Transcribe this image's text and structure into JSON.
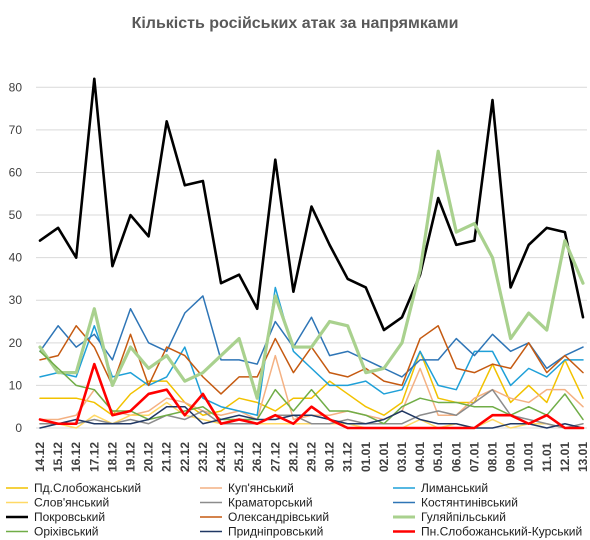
{
  "chart_data": {
    "type": "line",
    "title": "Кількість російських атак за напрямками",
    "xlabel": "",
    "ylabel": "",
    "ylim": [
      0,
      85
    ],
    "yticks": [
      0,
      10,
      20,
      30,
      40,
      50,
      60,
      70,
      80
    ],
    "grid": "horizontal",
    "legend_position": "bottom",
    "categories": [
      "14.12",
      "15.12",
      "16.12",
      "17.12",
      "18.12",
      "19.12",
      "20.12",
      "21.12",
      "22.12",
      "23.12",
      "24.12",
      "25.12",
      "26.12",
      "27.12",
      "28.12",
      "29.12",
      "30.12",
      "31.12",
      "01.01",
      "02.01",
      "03.01",
      "04.01",
      "05.01",
      "06.01",
      "07.01",
      "08.01",
      "09.01",
      "10.01",
      "11.01",
      "12.01",
      "13.01"
    ],
    "x": [
      "14.12",
      "15.12",
      "16.12",
      "17.12",
      "18.12",
      "19.12",
      "20.12",
      "21.12",
      "22.12",
      "23.12",
      "24.12",
      "25.12",
      "26.12",
      "27.12",
      "28.12",
      "29.12",
      "30.12",
      "31.12",
      "01.01",
      "02.01",
      "03.01",
      "04.01",
      "05.01",
      "06.01",
      "07.01",
      "08.01",
      "09.01",
      "10.01",
      "11.01",
      "12.01",
      "13.01"
    ],
    "series": [
      {
        "name": "Пд.Слобожанський",
        "color": "#f2c200",
        "width": 1.5,
        "values": [
          7,
          7,
          7,
          6,
          3,
          8,
          11,
          11,
          6,
          3,
          4,
          7,
          6,
          4,
          7,
          7,
          11,
          8,
          5,
          3,
          6,
          18,
          7,
          6,
          6,
          15,
          6,
          10,
          6,
          16,
          7
        ]
      },
      {
        "name": "Куп'янський",
        "color": "#f4b183",
        "width": 1.5,
        "values": [
          2,
          2,
          3,
          9,
          4,
          3,
          4,
          7,
          6,
          4,
          3,
          4,
          2,
          17,
          2,
          3,
          3,
          4,
          3,
          2,
          4,
          14,
          3,
          3,
          7,
          9,
          7,
          6,
          9,
          9,
          5
        ]
      },
      {
        "name": "Лиманський",
        "color": "#1fa0d8",
        "width": 1.5,
        "values": [
          12,
          13,
          12,
          24,
          12,
          13,
          10,
          12,
          19,
          7,
          5,
          4,
          3,
          33,
          18,
          14,
          10,
          10,
          11,
          8,
          9,
          18,
          10,
          9,
          18,
          18,
          10,
          14,
          12,
          16,
          16
        ]
      },
      {
        "name": "Слов'янський",
        "color": "#ffd966",
        "width": 1.5,
        "values": [
          1,
          1,
          0,
          3,
          1,
          3,
          3,
          6,
          3,
          2,
          1,
          1,
          1,
          1,
          1,
          1,
          1,
          1,
          0,
          0,
          0,
          2,
          0,
          1,
          0,
          2,
          0,
          1,
          1,
          0,
          0
        ]
      },
      {
        "name": "Краматорський",
        "color": "#8c8c8c",
        "width": 1.5,
        "values": [
          1,
          1,
          1,
          2,
          1,
          2,
          1,
          3,
          2,
          4,
          1,
          1,
          1,
          3,
          3,
          1,
          1,
          2,
          1,
          1,
          1,
          3,
          4,
          3,
          6,
          9,
          3,
          2,
          1,
          0,
          1
        ]
      },
      {
        "name": "Костянтинівський",
        "color": "#2e75b6",
        "width": 1.5,
        "values": [
          18,
          24,
          19,
          22,
          16,
          28,
          20,
          18,
          27,
          31,
          16,
          16,
          15,
          25,
          19,
          26,
          17,
          18,
          16,
          14,
          12,
          16,
          16,
          21,
          17,
          22,
          18,
          20,
          14,
          17,
          19
        ]
      },
      {
        "name": "Покровський",
        "color": "#000000",
        "width": 2.6,
        "values": [
          44,
          47,
          40,
          82,
          38,
          50,
          45,
          72,
          57,
          58,
          34,
          36,
          28,
          63,
          32,
          52,
          43,
          35,
          33,
          23,
          26,
          36,
          54,
          43,
          44,
          77,
          33,
          43,
          47,
          46,
          26
        ]
      },
      {
        "name": "Олександрівський",
        "color": "#c55a11",
        "width": 1.5,
        "values": [
          16,
          17,
          24,
          19,
          10,
          22,
          10,
          19,
          17,
          12,
          8,
          12,
          12,
          21,
          13,
          19,
          13,
          12,
          14,
          11,
          10,
          21,
          24,
          14,
          13,
          15,
          14,
          20,
          13,
          17,
          13
        ]
      },
      {
        "name": "Гуляйпільський",
        "color": "#a9d18e",
        "width": 3.2,
        "values": [
          19,
          13,
          13,
          28,
          10,
          19,
          14,
          17,
          11,
          13,
          17,
          21,
          7,
          31,
          19,
          19,
          25,
          24,
          13,
          14,
          20,
          37,
          65,
          46,
          48,
          40,
          21,
          27,
          23,
          44,
          34
        ]
      },
      {
        "name": "Оріхівський",
        "color": "#70ad47",
        "width": 1.5,
        "values": [
          18,
          14,
          10,
          9,
          4,
          4,
          2,
          3,
          4,
          5,
          2,
          2,
          2,
          9,
          4,
          9,
          4,
          4,
          3,
          1,
          5,
          7,
          6,
          6,
          5,
          5,
          3,
          5,
          3,
          8,
          2
        ]
      },
      {
        "name": "Придніпровський",
        "color": "#203864",
        "width": 1.5,
        "values": [
          0,
          1,
          2,
          1,
          1,
          1,
          2,
          5,
          5,
          1,
          2,
          3,
          2,
          2,
          3,
          3,
          2,
          1,
          1,
          2,
          4,
          2,
          1,
          1,
          0,
          0,
          1,
          1,
          0,
          1,
          0
        ]
      },
      {
        "name": "Пн.Слобожанський-Курський",
        "color": "#ff0000",
        "width": 2.6,
        "values": [
          2,
          1,
          1,
          15,
          3,
          4,
          8,
          9,
          3,
          8,
          1,
          2,
          1,
          3,
          1,
          5,
          2,
          0,
          0,
          0,
          0,
          0,
          0,
          0,
          0,
          3,
          3,
          1,
          3,
          0,
          0
        ]
      }
    ]
  }
}
